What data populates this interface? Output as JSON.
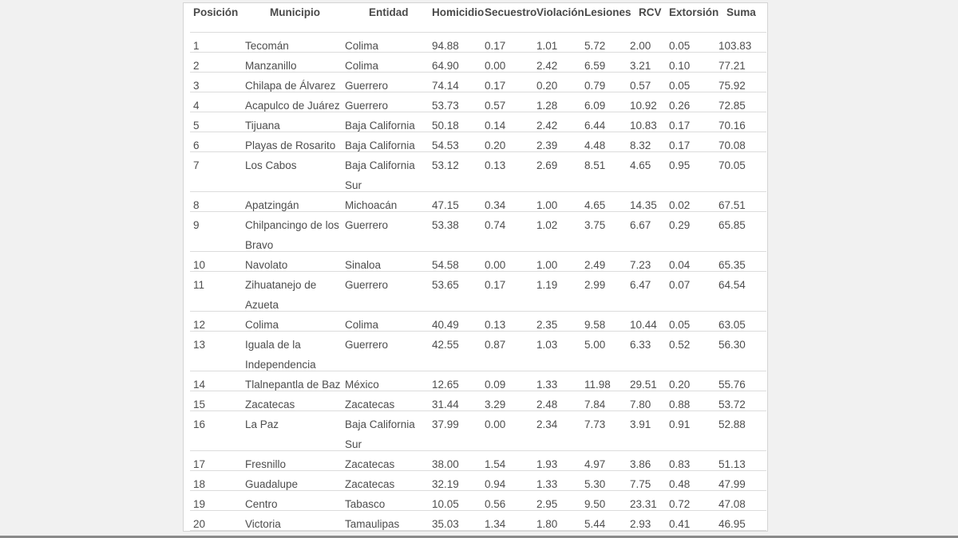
{
  "table": {
    "headers": [
      "Posición",
      "Municipio",
      "Entidad",
      "Homicidio",
      "Secuestro",
      "Violación",
      "Lesiones",
      "RCV",
      "Extorsión",
      "Suma"
    ],
    "rows": [
      [
        "1",
        "Tecomán",
        "Colima",
        "94.88",
        "0.17",
        "1.01",
        "5.72",
        "2.00",
        "0.05",
        "103.83"
      ],
      [
        "2",
        "Manzanillo",
        "Colima",
        "64.90",
        "0.00",
        "2.42",
        "6.59",
        "3.21",
        "0.10",
        "77.21"
      ],
      [
        "3",
        "Chilapa de Álvarez",
        "Guerrero",
        "74.14",
        "0.17",
        "0.20",
        "0.79",
        "0.57",
        "0.05",
        "75.92"
      ],
      [
        "4",
        "Acapulco de Juárez",
        "Guerrero",
        "53.73",
        "0.57",
        "1.28",
        "6.09",
        "10.92",
        "0.26",
        "72.85"
      ],
      [
        "5",
        "Tijuana",
        "Baja California",
        "50.18",
        "0.14",
        "2.42",
        "6.44",
        "10.83",
        "0.17",
        "70.16"
      ],
      [
        "6",
        "Playas de Rosarito",
        "Baja California",
        "54.53",
        "0.20",
        "2.39",
        "4.48",
        "8.32",
        "0.17",
        "70.08"
      ],
      [
        "7",
        "Los Cabos",
        "Baja California Sur",
        "53.12",
        "0.13",
        "2.69",
        "8.51",
        "4.65",
        "0.95",
        "70.05"
      ],
      [
        "8",
        "Apatzingán",
        "Michoacán",
        "47.15",
        "0.34",
        "1.00",
        "4.65",
        "14.35",
        "0.02",
        "67.51"
      ],
      [
        "9",
        "Chilpancingo de los Bravo",
        "Guerrero",
        "53.38",
        "0.74",
        "1.02",
        "3.75",
        "6.67",
        "0.29",
        "65.85"
      ],
      [
        "10",
        "Navolato",
        "Sinaloa",
        "54.58",
        "0.00",
        "1.00",
        "2.49",
        "7.23",
        "0.04",
        "65.35"
      ],
      [
        "11",
        "Zihuatanejo de Azueta",
        "Guerrero",
        "53.65",
        "0.17",
        "1.19",
        "2.99",
        "6.47",
        "0.07",
        "64.54"
      ],
      [
        "12",
        "Colima",
        "Colima",
        "40.49",
        "0.13",
        "2.35",
        "9.58",
        "10.44",
        "0.05",
        "63.05"
      ],
      [
        "13",
        "Iguala de la Independencia",
        "Guerrero",
        "42.55",
        "0.87",
        "1.03",
        "5.00",
        "6.33",
        "0.52",
        "56.30"
      ],
      [
        "14",
        "Tlalnepantla de Baz",
        "México",
        "12.65",
        "0.09",
        "1.33",
        "11.98",
        "29.51",
        "0.20",
        "55.76"
      ],
      [
        "15",
        "Zacatecas",
        "Zacatecas",
        "31.44",
        "3.29",
        "2.48",
        "7.84",
        "7.80",
        "0.88",
        "53.72"
      ],
      [
        "16",
        "La Paz",
        "Baja California Sur",
        "37.99",
        "0.00",
        "2.34",
        "7.73",
        "3.91",
        "0.91",
        "52.88"
      ],
      [
        "17",
        "Fresnillo",
        "Zacatecas",
        "38.00",
        "1.54",
        "1.93",
        "4.97",
        "3.86",
        "0.83",
        "51.13"
      ],
      [
        "18",
        "Guadalupe",
        "Zacatecas",
        "32.19",
        "0.94",
        "1.33",
        "5.30",
        "7.75",
        "0.48",
        "47.99"
      ],
      [
        "19",
        "Centro",
        "Tabasco",
        "10.05",
        "0.56",
        "2.95",
        "9.50",
        "23.31",
        "0.72",
        "47.08"
      ],
      [
        "20",
        "Victoria",
        "Tamaulipas",
        "35.03",
        "1.34",
        "1.80",
        "5.44",
        "2.93",
        "0.41",
        "46.95"
      ]
    ]
  }
}
